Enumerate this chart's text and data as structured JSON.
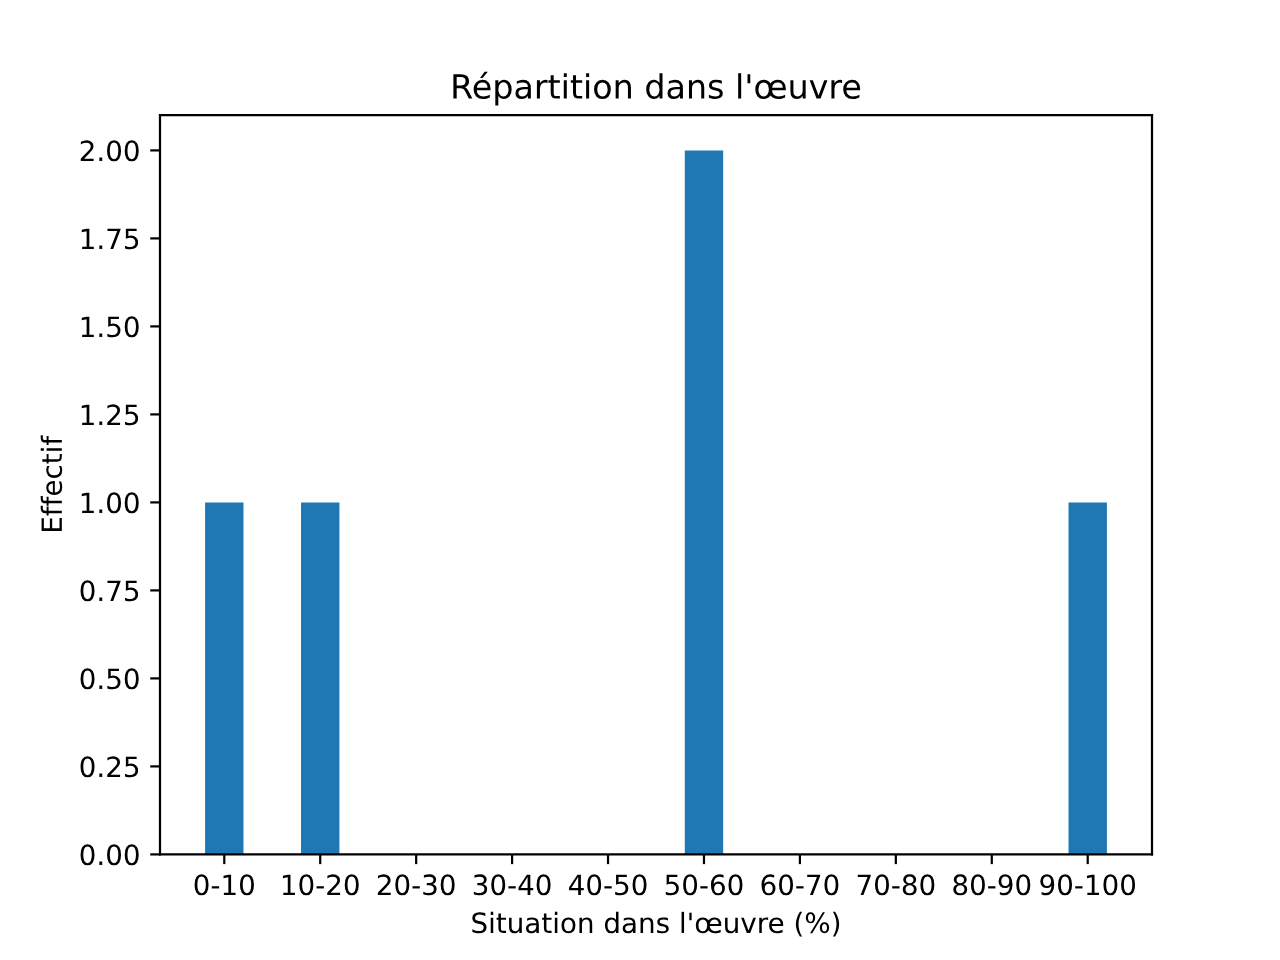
{
  "chart_data": {
    "type": "bar",
    "title": "Répartition dans l'œuvre",
    "xlabel": "Situation dans l'œuvre (%)",
    "ylabel": "Effectif",
    "categories": [
      "0-10",
      "10-20",
      "20-30",
      "30-40",
      "40-50",
      "50-60",
      "60-70",
      "70-80",
      "80-90",
      "90-100"
    ],
    "values": [
      1,
      1,
      0,
      0,
      0,
      2,
      0,
      0,
      0,
      1
    ],
    "color": "#1f77b4",
    "ylim": [
      0,
      2.1
    ],
    "yticks": [
      {
        "value": 0,
        "label": "0.00"
      },
      {
        "value": 0.25,
        "label": "0.25"
      },
      {
        "value": 0.5,
        "label": "0.50"
      },
      {
        "value": 0.75,
        "label": "0.75"
      },
      {
        "value": 1,
        "label": "1.00"
      },
      {
        "value": 1.25,
        "label": "1.25"
      },
      {
        "value": 1.5,
        "label": "1.50"
      },
      {
        "value": 1.75,
        "label": "1.75"
      },
      {
        "value": 2,
        "label": "2.00"
      }
    ],
    "grid": false
  }
}
